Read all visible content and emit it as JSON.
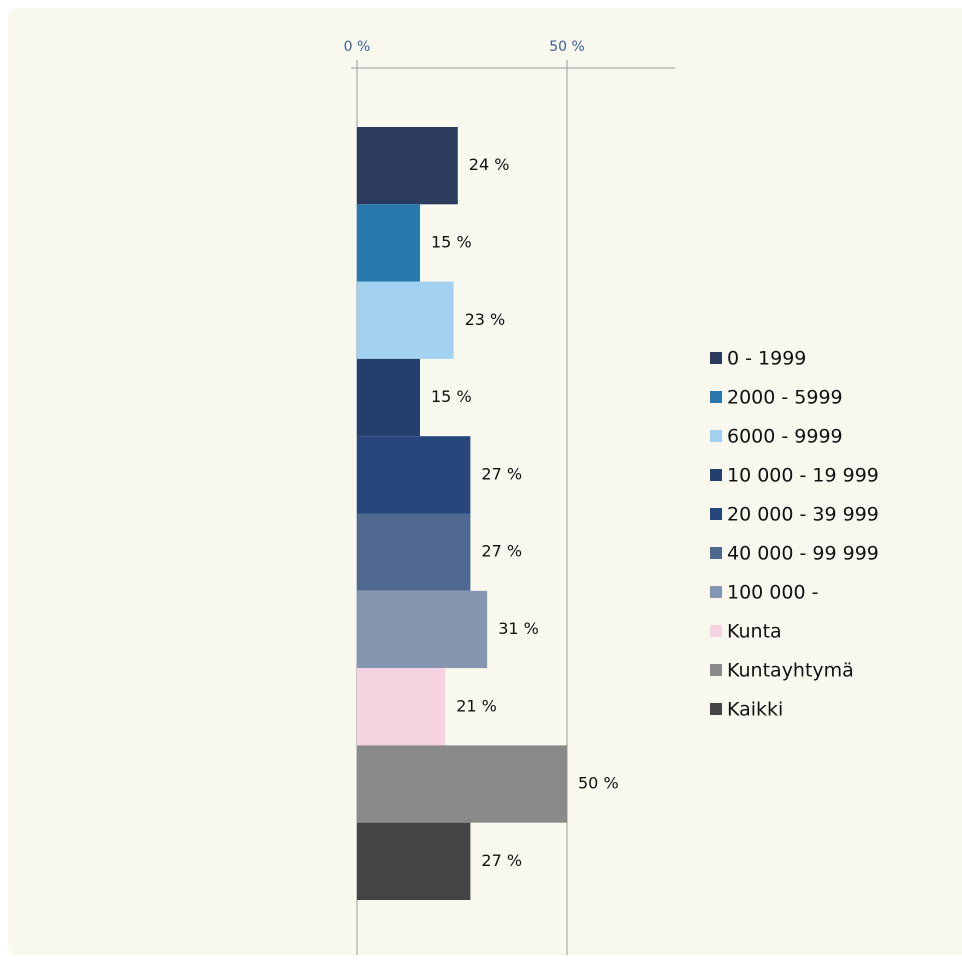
{
  "chart_data": {
    "type": "barh",
    "categories": [
      "0 - 1999",
      "2000 - 5999",
      "6000 - 9999",
      "10 000 - 19 999",
      "20 000 - 39 999",
      "40 000 - 99 999",
      "100 000 -",
      "Kunta",
      "Kuntayhtymä",
      "Kaikki"
    ],
    "values": [
      24,
      15,
      23,
      15,
      27,
      27,
      31,
      21,
      50,
      27
    ],
    "value_labels": [
      "24 %",
      "15 %",
      "23 %",
      "15 %",
      "27 %",
      "27 %",
      "31 %",
      "21 %",
      "50 %",
      "27 %"
    ],
    "colors": [
      "#2b3c5e",
      "#2878ae",
      "#a3d2f0",
      "#233f6e",
      "#26467c",
      "#4e6890",
      "#8796b0",
      "#f5d3e0",
      "#8a8a8a",
      "#444444"
    ],
    "xlim": [
      0,
      75
    ],
    "xticks": [
      {
        "value": 0,
        "label": "0 %"
      },
      {
        "value": 50,
        "label": "50 %"
      }
    ],
    "grid": true,
    "legend": "right"
  }
}
